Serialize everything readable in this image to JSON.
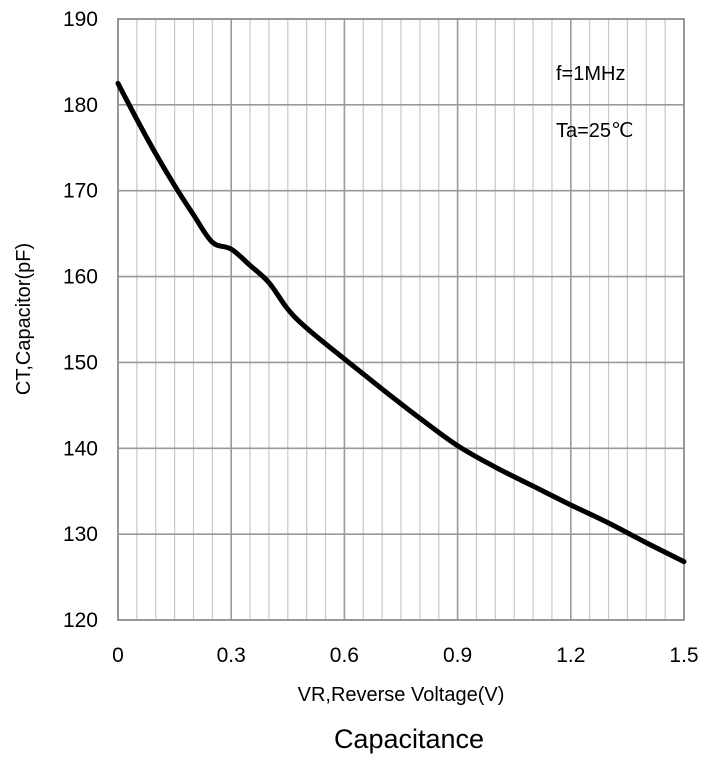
{
  "chart_data": {
    "type": "line",
    "title": "Capacitance",
    "xlabel": "VR,Reverse Voltage(V)",
    "ylabel": "CT,Capacitor(pF)",
    "xlim": [
      0,
      1.5
    ],
    "ylim": [
      120,
      190
    ],
    "x_ticks": [
      "0",
      "0.3",
      "0.6",
      "0.9",
      "1.2",
      "1.5"
    ],
    "y_ticks": [
      "120",
      "130",
      "140",
      "150",
      "160",
      "170",
      "180",
      "190"
    ],
    "grid": true,
    "annotations": [
      "f=1MHz",
      "Ta=25℃"
    ],
    "series": [
      {
        "color": "#000000",
        "x": [
          0,
          0.05,
          0.1,
          0.15,
          0.2,
          0.25,
          0.3,
          0.35,
          0.4,
          0.45,
          0.5,
          0.6,
          0.7,
          0.8,
          0.9,
          1.0,
          1.1,
          1.2,
          1.3,
          1.4,
          1.5
        ],
        "y": [
          182.5,
          178.3,
          174.3,
          170.6,
          167.2,
          164,
          163.2,
          161.3,
          159.3,
          156.2,
          154,
          150.4,
          146.9,
          143.5,
          140.3,
          137.8,
          135.6,
          133.4,
          131.3,
          129,
          126.8
        ]
      }
    ]
  }
}
